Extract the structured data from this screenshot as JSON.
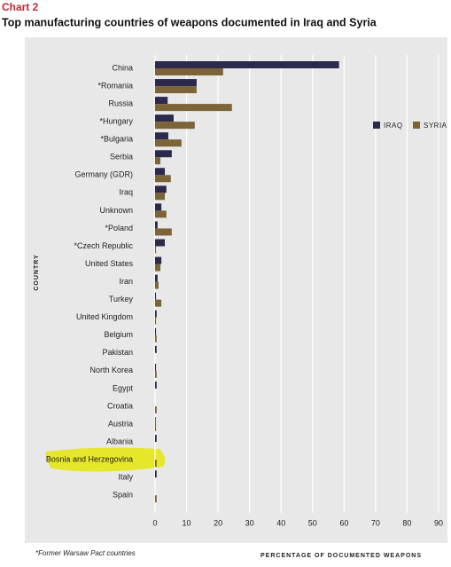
{
  "chart_data": {
    "type": "bar",
    "orientation": "horizontal",
    "kicker": "Chart 2",
    "title": "Top manufacturing countries of weapons documented in Iraq and Syria",
    "y_label": "COUNTRY",
    "x_label": "PERCENTAGE OF DOCUMENTED WEAPONS",
    "footnote": "*Former Warsaw Pact countries",
    "categories": [
      "China",
      "*Romania",
      "Russia",
      "*Hungary",
      "*Bulgaria",
      "Serbia",
      "Germany (GDR)",
      "Iraq",
      "Unknown",
      "*Poland",
      "*Czech Republic",
      "United States",
      "Iran",
      "Turkey",
      "United Kingdom",
      "Belgium",
      "Pakistan",
      "North Korea",
      "Egypt",
      "Croatia",
      "Austria",
      "Albania",
      "Bosnia and Herzegovina",
      "Italy",
      "Spain"
    ],
    "series": [
      {
        "name": "IRAQ",
        "color": "#2b2a4c",
        "values": [
          58.4,
          13.2,
          4,
          5.9,
          4.2,
          5.3,
          3.1,
          3.6,
          2,
          0.8,
          3.1,
          2,
          0.8,
          0.3,
          0.5,
          0.3,
          0.5,
          0.3,
          0.5,
          0,
          0.2,
          0.5,
          0,
          0.5,
          0
        ]
      },
      {
        "name": "SYRIA",
        "color": "#7d6338",
        "values": [
          21.6,
          13.2,
          24.4,
          12.6,
          8.4,
          1.7,
          5,
          3.1,
          3.6,
          5.3,
          0.3,
          1.7,
          1.1,
          2,
          0.3,
          0.5,
          0,
          0.5,
          0,
          0.5,
          0.3,
          0,
          0.5,
          0,
          0.5
        ]
      }
    ],
    "xlim": [
      0,
      90
    ],
    "xticks": [
      0,
      10,
      20,
      30,
      40,
      50,
      60,
      70,
      80,
      90
    ],
    "grid": true,
    "legend": "upper right"
  }
}
